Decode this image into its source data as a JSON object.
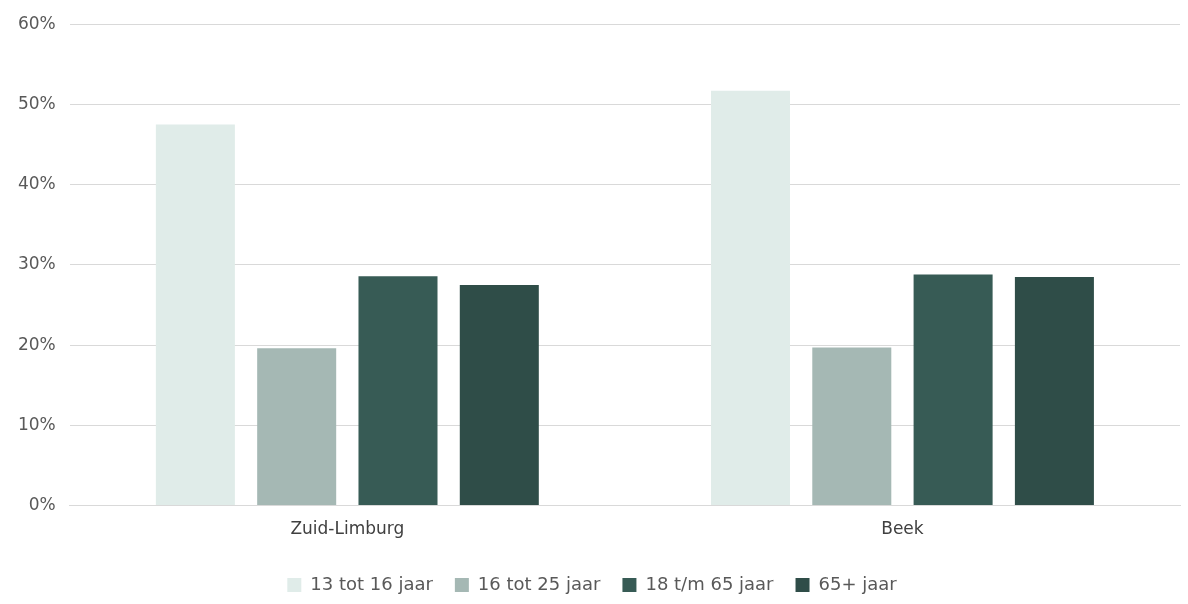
{
  "chart_data": {
    "type": "bar",
    "categories": [
      "Zuid-Limburg",
      "Beek"
    ],
    "series": [
      {
        "name": "13 tot 16 jaar",
        "color": "#e0ece9",
        "values": [
          47.5,
          51.7
        ]
      },
      {
        "name": "16 tot 25 jaar",
        "color": "#a5b8b4",
        "values": [
          19.6,
          19.7
        ]
      },
      {
        "name": "18 t/m 65 jaar",
        "color": "#375b55",
        "values": [
          28.6,
          28.8
        ]
      },
      {
        "name": "65+ jaar",
        "color": "#2f4d48",
        "values": [
          27.5,
          28.5
        ]
      }
    ],
    "ylim": [
      0,
      60
    ],
    "yticks": [
      {
        "value": 0,
        "label": "0%"
      },
      {
        "value": 10,
        "label": "10%"
      },
      {
        "value": 20,
        "label": "20%"
      },
      {
        "value": 30,
        "label": "30%"
      },
      {
        "value": 40,
        "label": "40%"
      },
      {
        "value": 50,
        "label": "50%"
      },
      {
        "value": 60,
        "label": "60%"
      }
    ],
    "grid": "y",
    "legend": "bottom"
  }
}
